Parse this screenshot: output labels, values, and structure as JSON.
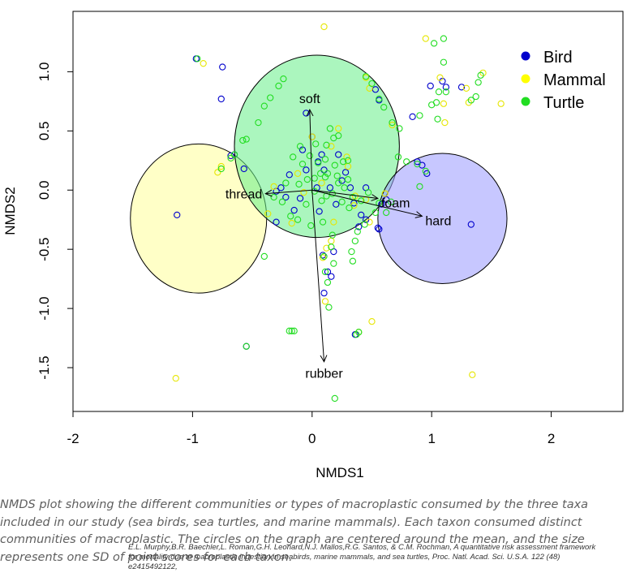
{
  "chart_data": {
    "type": "scatter",
    "xlabel": "NMDS1",
    "ylabel": "NMDS2",
    "xlim": [
      -2.0,
      2.6
    ],
    "ylim": [
      -1.87,
      1.51
    ],
    "xticks": [
      -2,
      -1,
      0,
      1,
      2
    ],
    "yticks": [
      -1.5,
      -1.0,
      -0.5,
      0.0,
      0.5,
      1.0
    ],
    "xtick_labels": [
      "-2",
      "-1",
      "0",
      "1",
      "2"
    ],
    "ytick_labels": [
      "-1.5",
      "-1.0",
      "-0.5",
      "0.0",
      "0.5",
      "1.0"
    ],
    "legend": {
      "position": "top-right",
      "entries": [
        "Bird",
        "Mammal",
        "Turtle"
      ]
    },
    "series": [
      {
        "name": "Bird",
        "color": "#0000cc",
        "points": [
          [
            -0.97,
            1.11
          ],
          [
            -0.75,
            1.04
          ],
          [
            -0.76,
            0.77
          ],
          [
            -0.68,
            0.29
          ],
          [
            -0.65,
            0.3
          ],
          [
            -0.57,
            0.18
          ],
          [
            -1.13,
            -0.21
          ],
          [
            -0.3,
            -0.27
          ],
          [
            -0.55,
            -1.32
          ],
          [
            0.36,
            -1.22
          ],
          [
            0.56,
            -0.33
          ],
          [
            0.55,
            -0.32
          ],
          [
            0.84,
            0.62
          ],
          [
            0.99,
            0.88
          ],
          [
            1.09,
            0.92
          ],
          [
            1.12,
            0.87
          ],
          [
            1.25,
            0.87
          ],
          [
            1.33,
            -0.29
          ],
          [
            0.92,
            0.21
          ],
          [
            0.88,
            0.24
          ],
          [
            0.96,
            0.14
          ],
          [
            0.18,
            -0.52
          ],
          [
            0.13,
            -0.69
          ],
          [
            0.1,
            -0.87
          ],
          [
            0.16,
            -0.73
          ],
          [
            0.09,
            -0.55
          ],
          [
            0.39,
            -0.31
          ],
          [
            0.45,
            -0.25
          ],
          [
            -0.26,
            0.02
          ],
          [
            -0.22,
            -0.06
          ],
          [
            -0.1,
            -0.07
          ],
          [
            0.04,
            0.02
          ],
          [
            0.1,
            0.17
          ],
          [
            0.25,
            0.08
          ],
          [
            0.15,
            0.02
          ],
          [
            0.05,
            0.24
          ],
          [
            -0.05,
            0.17
          ],
          [
            0.28,
            0.15
          ],
          [
            0.32,
            0.02
          ],
          [
            0.2,
            -0.12
          ],
          [
            0.35,
            -0.11
          ],
          [
            0.45,
            0.02
          ],
          [
            0.58,
            -0.12
          ],
          [
            0.62,
            -0.08
          ],
          [
            -0.3,
            -0.01
          ],
          [
            -0.08,
            0.34
          ],
          [
            0.56,
            0.76
          ],
          [
            0.53,
            0.85
          ],
          [
            -0.05,
            0.65
          ],
          [
            0.0,
            0.45
          ],
          [
            0.08,
            0.3
          ],
          [
            0.22,
            0.3
          ],
          [
            -0.15,
            -0.17
          ],
          [
            0.06,
            -0.18
          ],
          [
            0.41,
            -0.21
          ],
          [
            -0.19,
            0.13
          ]
        ]
      },
      {
        "name": "Mammal",
        "color": "#e6e600",
        "points": [
          [
            -0.91,
            1.07
          ],
          [
            0.1,
            1.38
          ],
          [
            0.45,
            0.95
          ],
          [
            0.48,
            0.86
          ],
          [
            1.07,
            0.95
          ],
          [
            1.1,
            0.73
          ],
          [
            1.29,
            0.86
          ],
          [
            1.43,
            0.99
          ],
          [
            1.31,
            0.74
          ],
          [
            1.58,
            0.73
          ],
          [
            -0.79,
            0.15
          ],
          [
            -0.76,
            0.2
          ],
          [
            -1.14,
            -1.59
          ],
          [
            1.34,
            -1.56
          ],
          [
            0.5,
            -1.11
          ],
          [
            0.39,
            -1.2
          ],
          [
            0.12,
            -0.49
          ],
          [
            0.09,
            -0.57
          ],
          [
            0.16,
            -0.43
          ],
          [
            0.11,
            -0.94
          ],
          [
            0.35,
            -0.13
          ],
          [
            0.48,
            -0.27
          ],
          [
            0.36,
            -0.05
          ],
          [
            0.0,
            0.45
          ],
          [
            -0.12,
            0.14
          ],
          [
            0.16,
            0.37
          ],
          [
            -0.32,
            0.03
          ],
          [
            -0.37,
            -0.2
          ],
          [
            -0.17,
            -0.28
          ],
          [
            0.29,
            0.28
          ],
          [
            0.3,
            0.2
          ],
          [
            0.08,
            0.06
          ],
          [
            0.45,
            -0.08
          ],
          [
            0.61,
            -0.03
          ],
          [
            -0.07,
            -0.02
          ],
          [
            0.18,
            -0.27
          ],
          [
            0.22,
            0.52
          ],
          [
            0.67,
            0.55
          ],
          [
            0.95,
            1.28
          ],
          [
            1.11,
            0.57
          ]
        ]
      },
      {
        "name": "Turtle",
        "color": "#22dd22",
        "points": [
          [
            -0.96,
            1.11
          ],
          [
            -0.24,
            0.94
          ],
          [
            -0.28,
            0.88
          ],
          [
            -0.35,
            0.78
          ],
          [
            -0.4,
            0.71
          ],
          [
            -0.45,
            0.57
          ],
          [
            -0.55,
            0.43
          ],
          [
            -0.58,
            0.42
          ],
          [
            -0.76,
            0.18
          ],
          [
            -0.4,
            -0.56
          ],
          [
            -0.55,
            -1.32
          ],
          [
            -0.19,
            -1.19
          ],
          [
            -0.17,
            -1.19
          ],
          [
            -0.15,
            -1.19
          ],
          [
            0.37,
            -1.22
          ],
          [
            0.19,
            -1.76
          ],
          [
            1.02,
            1.24
          ],
          [
            1.1,
            1.28
          ],
          [
            1.1,
            1.08
          ],
          [
            1.06,
            0.83
          ],
          [
            1.12,
            0.83
          ],
          [
            1.04,
            0.74
          ],
          [
            1.0,
            0.72
          ],
          [
            1.37,
            0.79
          ],
          [
            1.33,
            0.76
          ],
          [
            1.41,
            0.97
          ],
          [
            1.39,
            0.91
          ],
          [
            1.05,
            0.6
          ],
          [
            0.9,
            0.63
          ],
          [
            0.67,
            0.57
          ],
          [
            0.6,
            0.7
          ],
          [
            0.56,
            0.77
          ],
          [
            0.73,
            0.52
          ],
          [
            0.45,
            0.96
          ],
          [
            0.5,
            0.9
          ],
          [
            0.72,
            0.28
          ],
          [
            0.79,
            0.24
          ],
          [
            0.88,
            0.22
          ],
          [
            0.95,
            0.16
          ],
          [
            0.9,
            0.03
          ],
          [
            -0.65,
            0.3
          ],
          [
            -0.68,
            0.27
          ],
          [
            0.36,
            -0.43
          ],
          [
            0.33,
            -0.52
          ],
          [
            0.34,
            -0.6
          ],
          [
            0.18,
            -0.62
          ],
          [
            0.13,
            -0.78
          ],
          [
            0.11,
            -0.69
          ],
          [
            0.14,
            -0.99
          ],
          [
            0.1,
            -0.56
          ],
          [
            0.16,
            -0.48
          ],
          [
            0.17,
            -0.38
          ],
          [
            0.39,
            -1.2
          ],
          [
            -0.02,
            0.29
          ],
          [
            -0.08,
            0.22
          ],
          [
            0.05,
            0.23
          ],
          [
            0.12,
            0.38
          ],
          [
            0.15,
            0.52
          ],
          [
            0.18,
            0.44
          ],
          [
            0.22,
            0.46
          ],
          [
            0.03,
            0.39
          ],
          [
            -0.1,
            0.37
          ],
          [
            0.26,
            0.24
          ],
          [
            0.3,
            0.25
          ],
          [
            0.27,
            0.02
          ],
          [
            0.22,
            0.06
          ],
          [
            0.17,
            -0.03
          ],
          [
            0.12,
            -0.05
          ],
          [
            0.08,
            -0.09
          ],
          [
            -0.05,
            -0.12
          ],
          [
            -0.12,
            -0.25
          ],
          [
            -0.22,
            0.06
          ],
          [
            -0.25,
            -0.1
          ],
          [
            -0.32,
            -0.06
          ],
          [
            0.02,
            0.1
          ],
          [
            0.07,
            0.14
          ],
          [
            0.11,
            0.11
          ],
          [
            0.3,
            0.09
          ],
          [
            0.34,
            -0.06
          ],
          [
            0.41,
            -0.09
          ],
          [
            0.47,
            -0.02
          ],
          [
            0.53,
            -0.19
          ],
          [
            0.56,
            -0.11
          ],
          [
            0.62,
            -0.19
          ],
          [
            0.66,
            -0.1
          ],
          [
            0.44,
            -0.29
          ],
          [
            0.38,
            -0.35
          ],
          [
            -0.18,
            -0.22
          ],
          [
            -0.01,
            -0.3
          ],
          [
            0.09,
            -0.27
          ],
          [
            0.25,
            -0.1
          ],
          [
            0.31,
            -0.15
          ],
          [
            -0.11,
            0.05
          ],
          [
            0.02,
            -0.01
          ],
          [
            0.19,
            0.21
          ],
          [
            0.13,
            0.14
          ],
          [
            -0.04,
            0.09
          ],
          [
            0.21,
            0.12
          ],
          [
            0.11,
            0.26
          ],
          [
            -0.16,
            0.28
          ]
        ]
      }
    ],
    "ellipses": [
      {
        "group": "Mammal",
        "center": [
          -0.95,
          -0.24
        ],
        "radius_x": 0.57,
        "radius_y": 0.63,
        "color": "#ffff99"
      },
      {
        "group": "Turtle",
        "center": [
          0.04,
          0.37
        ],
        "radius_x": 0.69,
        "radius_y": 0.77,
        "color": "#66ee88"
      },
      {
        "group": "Bird",
        "center": [
          1.09,
          -0.24
        ],
        "radius_x": 0.54,
        "radius_y": 0.55,
        "color": "#9999ff"
      }
    ],
    "vectors": [
      {
        "label": "soft",
        "end": [
          -0.02,
          0.68
        ]
      },
      {
        "label": "thread",
        "end": [
          -0.39,
          -0.03
        ]
      },
      {
        "label": "foam",
        "end": [
          0.55,
          -0.07
        ]
      },
      {
        "label": "hard",
        "end": [
          0.92,
          -0.22
        ]
      },
      {
        "label": "rubber",
        "end": [
          0.1,
          -1.45
        ]
      }
    ]
  },
  "caption": {
    "text": "NMDS plot showing the different communities or types of macroplastic consumed by the three taxa included in our study (sea birds, sea turtles, and marine mammals). Each taxon consumed distinct communities of macroplastic. The circles on the graph are centered around the mean, and the size represents one SD of point scores for each taxon.",
    "citation_line1": "E.L. Murphy,B.R. Baechler,L. Roman,G.H. Leonard,N.J. Mallos,R.G. Santos, & C.M. Rochman,  A quantitative risk assessment framework",
    "citation_line2": "for mortality due to macroplastic ingestion in seabirds, marine mammals, and sea turtles, Proc. Natl. Acad. Sci. U.S.A. 122 (48)",
    "citation_line3": "e2415492122,"
  }
}
